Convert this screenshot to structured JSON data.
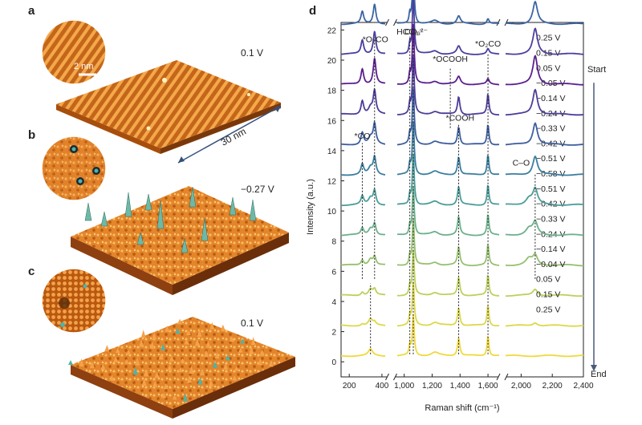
{
  "panels": {
    "a": {
      "label": "a",
      "voltage": "0.1 V",
      "scale": "2 nm",
      "size": "30 nm"
    },
    "b": {
      "label": "b",
      "voltage": "−0.27 V"
    },
    "c": {
      "label": "c",
      "voltage": "0.1 V"
    },
    "d": {
      "label": "d"
    }
  },
  "colors": {
    "orange_dark": "#b85a10",
    "orange": "#e88a2a",
    "orange_light": "#f7b256",
    "teal": "#4fb3a8"
  },
  "chart_data": {
    "type": "line",
    "title": "",
    "xlabel": "Raman shift (cm⁻¹)",
    "ylabel": "Intensity (a.u.)",
    "ylim": [
      -1,
      22.5
    ],
    "yticks": [
      "0",
      "2",
      "4",
      "6",
      "8",
      "10",
      "12",
      "14",
      "16",
      "18",
      "20",
      "22"
    ],
    "xticks": [
      "200",
      "400",
      "1,000",
      "1,200",
      "1,400",
      "1,600",
      "2,000",
      "2,200",
      "2,400"
    ],
    "x_segments": [
      [
        150,
        420
      ],
      [
        950,
        1680
      ],
      [
        1900,
        2400
      ]
    ],
    "peak_labels": [
      {
        "text": "*O₂CO",
        "x": 360,
        "y": 21.2
      },
      {
        "text": "HCO₃⁻",
        "x": 1040,
        "y": 21.7
      },
      {
        "text": "CO₃²⁻",
        "x": 1085,
        "y": 21.7
      },
      {
        "text": "*OCOOH",
        "x": 1330,
        "y": 19.9
      },
      {
        "text": "*O₂CO",
        "x": 1600,
        "y": 20.9
      },
      {
        "text": "*COOH",
        "x": 1400,
        "y": 16.0
      },
      {
        "text": "*CO",
        "x": 280,
        "y": 14.8
      },
      {
        "text": "C–O",
        "x": 2000,
        "y": 13.0
      }
    ],
    "arrow_start": "Start",
    "arrow_end": "End",
    "series": [
      {
        "name": "0.25 V",
        "offset": 21,
        "color": "#f2e03a",
        "phase": "start"
      },
      {
        "name": "0.15 V",
        "offset": 20,
        "color": "#e4de46",
        "phase": "start"
      },
      {
        "name": "0.05 V",
        "offset": 19,
        "color": "#bfd04e",
        "phase": "start"
      },
      {
        "name": "−0.05 V",
        "offset": 18,
        "color": "#9ec15c",
        "phase": "start"
      },
      {
        "name": "−0.14 V",
        "offset": 17,
        "color": "#74b08a",
        "phase": "start"
      },
      {
        "name": "−0.24 V",
        "offset": 16,
        "color": "#4f9ea8",
        "phase": "start"
      },
      {
        "name": "−0.33 V",
        "offset": 15,
        "color": "#3f82a9",
        "phase": "start"
      },
      {
        "name": "−0.42 V",
        "offset": 14,
        "color": "#3b64a3",
        "phase": "start"
      },
      {
        "name": "−0.51 V",
        "offset": 13,
        "color": "#4a3f9e",
        "phase": "start"
      },
      {
        "name": "−0.58 V",
        "offset": 12,
        "color": "#5b1f8f",
        "phase": "min"
      },
      {
        "name": "−0.51 V",
        "offset": 11,
        "color": "#4d3c99",
        "phase": "end"
      },
      {
        "name": "−0.42 V",
        "offset": 10,
        "color": "#3d5e9e",
        "phase": "end"
      },
      {
        "name": "−0.33 V",
        "offset": 9,
        "color": "#3c7e9f",
        "phase": "end"
      },
      {
        "name": "−0.24 V",
        "offset": 8,
        "color": "#4b9c9a",
        "phase": "end"
      },
      {
        "name": "−0.14 V",
        "offset": 7,
        "color": "#6cb08c",
        "phase": "end"
      },
      {
        "name": "−0.04 V",
        "offset": 6,
        "color": "#95c06e",
        "phase": "end"
      },
      {
        "name": "0.05 V",
        "offset": 5,
        "color": "#bcd05c",
        "phase": "end"
      },
      {
        "name": "0.15 V",
        "offset": 4,
        "color": "#dcd84a",
        "phase": "end"
      },
      {
        "name": "0.25 V",
        "offset": 3,
        "color": "#efd93c",
        "phase": "end"
      }
    ]
  }
}
